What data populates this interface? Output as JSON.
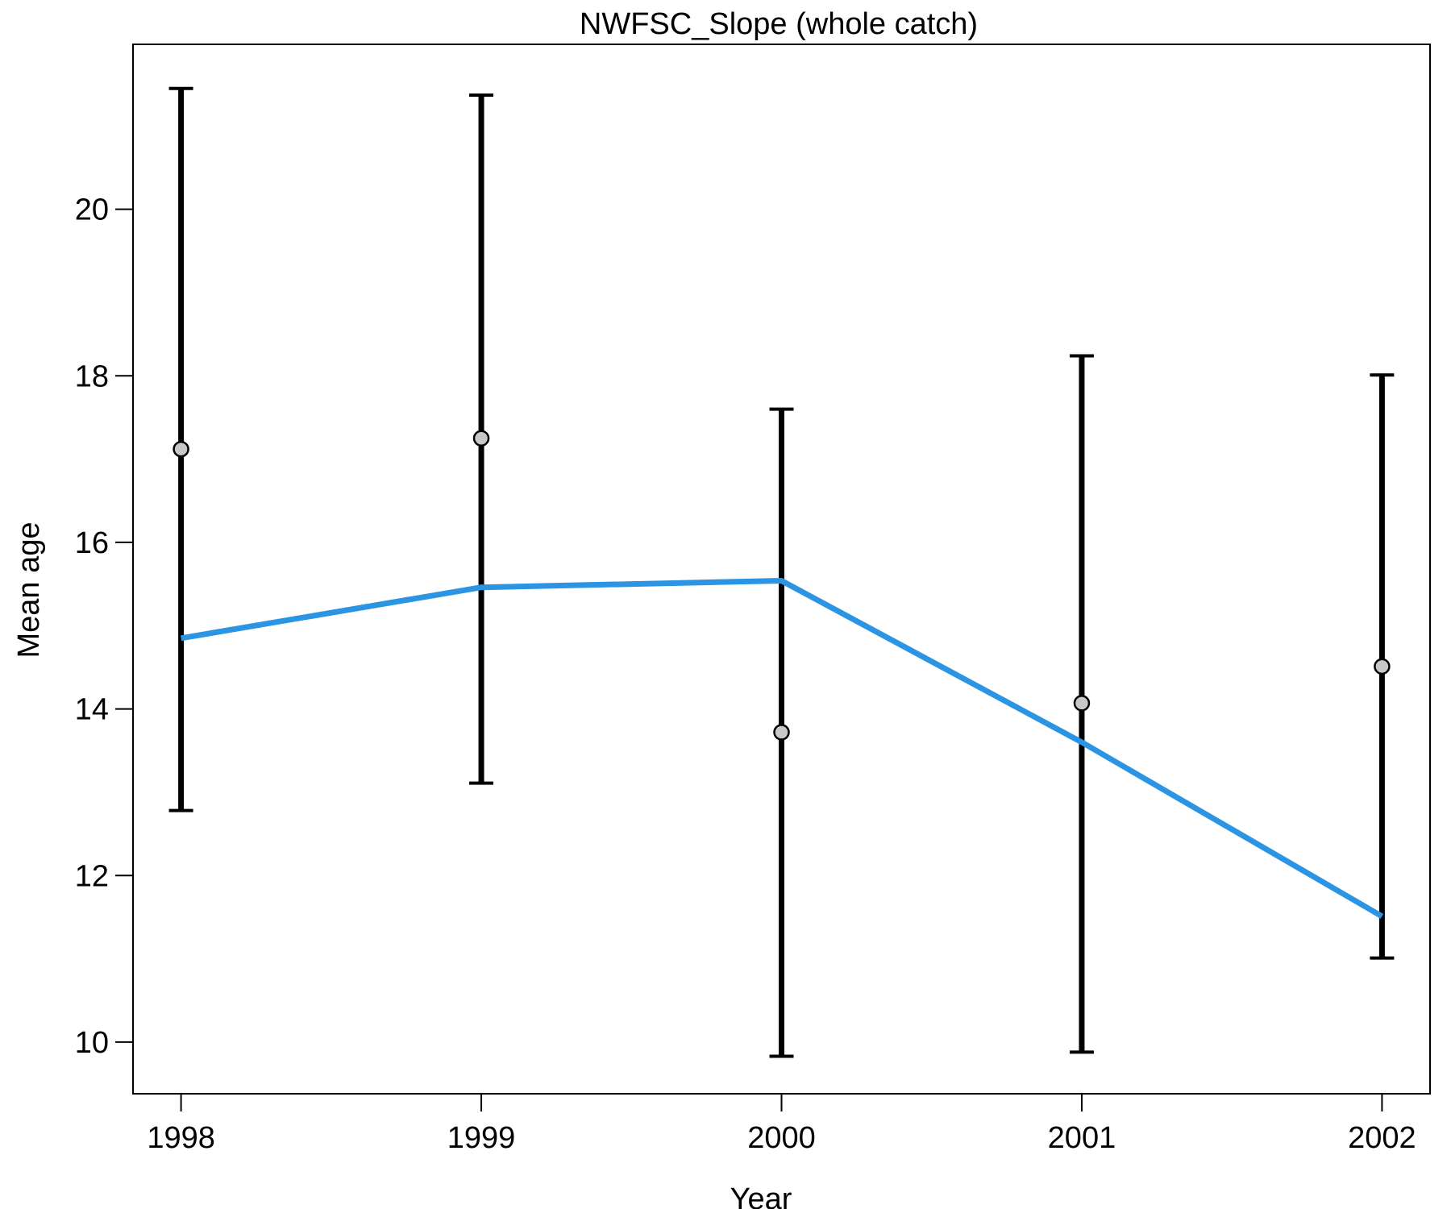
{
  "chart_data": {
    "type": "line",
    "title": "NWFSC_Slope (whole catch)",
    "xlabel": "Year",
    "ylabel": "Mean age",
    "x": [
      1998,
      1999,
      2000,
      2001,
      2002
    ],
    "xlim": [
      1997.84,
      2002.16
    ],
    "ylim": [
      9.38,
      21.98
    ],
    "yticks": [
      10,
      12,
      14,
      16,
      18,
      20
    ],
    "grid": false,
    "series": [
      {
        "role": "observed",
        "style": "points-with-error-bars",
        "color": "#000000",
        "point_fill": "#c8c8c8",
        "values": [
          17.12,
          17.25,
          13.72,
          14.07,
          14.51
        ],
        "lower": [
          12.78,
          13.11,
          9.83,
          9.88,
          11.01
        ],
        "upper": [
          21.45,
          21.37,
          17.6,
          18.24,
          18.01
        ]
      },
      {
        "role": "expected",
        "style": "line",
        "color": "#2b95e3",
        "values": [
          14.85,
          15.46,
          15.54,
          13.6,
          11.51
        ]
      }
    ]
  }
}
